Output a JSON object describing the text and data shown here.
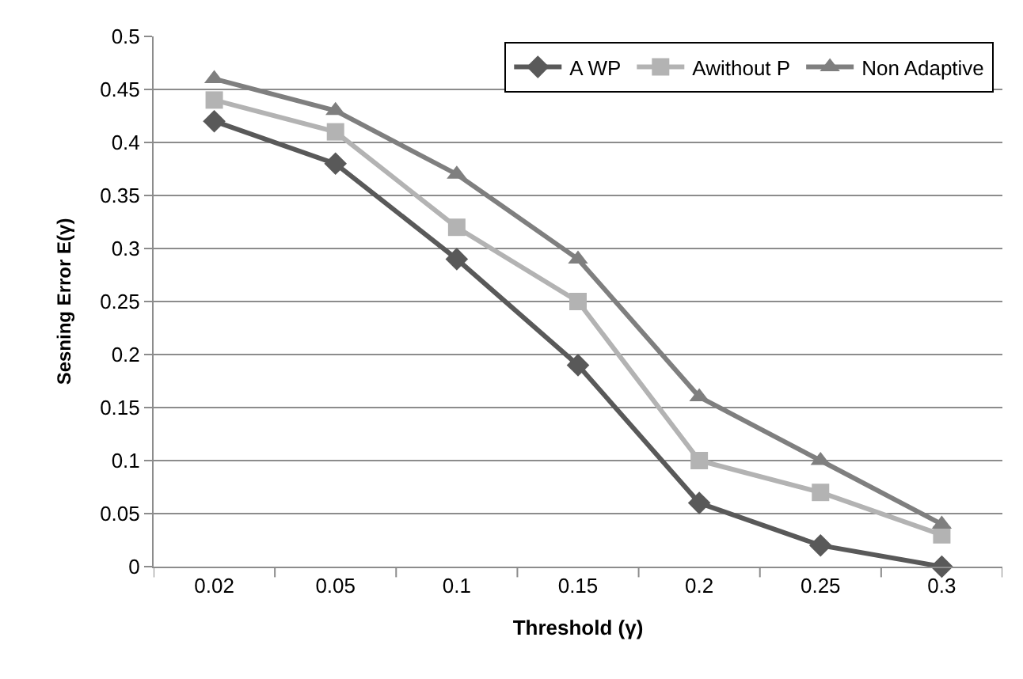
{
  "chart_data": {
    "type": "line",
    "xlabel": "Threshold (γ)",
    "ylabel": "Sesning Error E(γ)",
    "categories": [
      "0.02",
      "0.05",
      "0.1",
      "0.15",
      "0.2",
      "0.25",
      "0.3"
    ],
    "series": [
      {
        "name": "A WP",
        "color": "#595959",
        "marker": "diamond",
        "values": [
          0.42,
          0.38,
          0.29,
          0.19,
          0.06,
          0.02,
          0.0
        ]
      },
      {
        "name": "Awithout P",
        "color": "#b3b3b3",
        "marker": "square",
        "values": [
          0.44,
          0.41,
          0.32,
          0.25,
          0.1,
          0.07,
          0.03
        ]
      },
      {
        "name": "Non Adaptive",
        "color": "#7f7f7f",
        "marker": "triangle",
        "values": [
          0.46,
          0.43,
          0.37,
          0.29,
          0.16,
          0.1,
          0.04
        ]
      }
    ],
    "ylim": [
      0,
      0.5
    ],
    "yticks": [
      0,
      0.05,
      0.1,
      0.15,
      0.2,
      0.25,
      0.3,
      0.35,
      0.4,
      0.45,
      0.5
    ],
    "grid": "y",
    "legend": "top right",
    "line_style": "solid"
  }
}
